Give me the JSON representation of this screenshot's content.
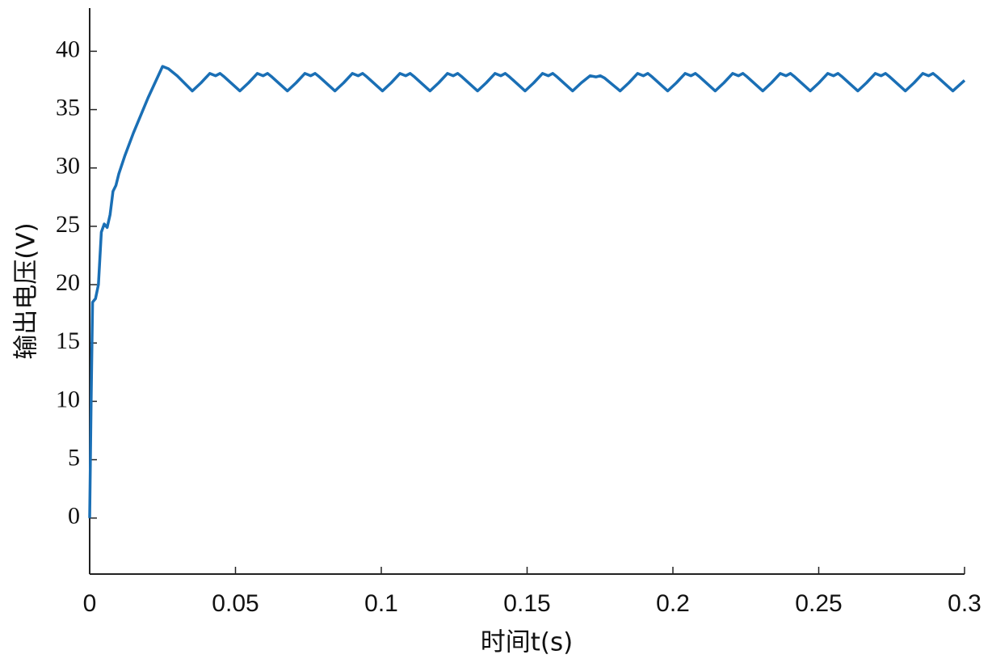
{
  "chart_data": {
    "type": "line",
    "xlabel": "时间t(s)",
    "ylabel": "输出电压(V)",
    "xlim": [
      0,
      0.3
    ],
    "ylim": [
      -4.8,
      43.7
    ],
    "xticks": [
      0,
      0.05,
      0.1,
      0.15,
      0.2,
      0.25,
      0.3
    ],
    "yticks": [
      0,
      5,
      10,
      15,
      20,
      25,
      30,
      35,
      40
    ],
    "grid": false,
    "series": [
      {
        "color": "#1a6fb5",
        "x": [
          0,
          0.0005,
          0.001,
          0.002,
          0.003,
          0.004,
          0.005,
          0.006,
          0.007,
          0.008,
          0.009,
          0.01,
          0.012,
          0.015,
          0.02,
          0.025,
          0.027,
          0.03,
          0.0352,
          0.0382,
          0.0412,
          0.0432,
          0.0447,
          0.0462,
          0.0515,
          0.0545,
          0.0575,
          0.0595,
          0.061,
          0.0625,
          0.0678,
          0.0708,
          0.0738,
          0.0758,
          0.0773,
          0.0788,
          0.0841,
          0.0871,
          0.0901,
          0.0921,
          0.0936,
          0.0951,
          0.1004,
          0.1034,
          0.1064,
          0.1084,
          0.1099,
          0.1114,
          0.1167,
          0.1197,
          0.1227,
          0.1247,
          0.1262,
          0.1277,
          0.133,
          0.136,
          0.139,
          0.141,
          0.1425,
          0.144,
          0.1493,
          0.1523,
          0.1553,
          0.1573,
          0.1588,
          0.1603,
          0.1656,
          0.1686,
          0.1716,
          0.1736,
          0.1751,
          0.1766,
          0.1819,
          0.1849,
          0.1879,
          0.1899,
          0.1914,
          0.1929,
          0.1982,
          0.2012,
          0.2042,
          0.2062,
          0.2077,
          0.2092,
          0.2145,
          0.2175,
          0.2205,
          0.2225,
          0.224,
          0.2255,
          0.2308,
          0.2338,
          0.2368,
          0.2388,
          0.2403,
          0.2418,
          0.2471,
          0.2501,
          0.2531,
          0.2551,
          0.2566,
          0.2581,
          0.2634,
          0.2664,
          0.2694,
          0.2714,
          0.2729,
          0.2744,
          0.2797,
          0.2827,
          0.2857,
          0.2877,
          0.2892,
          0.2907,
          0.296,
          0.3
        ],
        "values": [
          0,
          10,
          18.5,
          18.8,
          20,
          24.5,
          25.2,
          24.9,
          26,
          28,
          28.5,
          29.5,
          31,
          33,
          36,
          38.7,
          38.5,
          37.9,
          36.6,
          37.3,
          38.1,
          37.9,
          38.1,
          37.8,
          36.6,
          37.3,
          38.1,
          37.9,
          38.1,
          37.8,
          36.6,
          37.3,
          38.1,
          37.9,
          38.1,
          37.8,
          36.6,
          37.3,
          38.1,
          37.9,
          38.1,
          37.8,
          36.6,
          37.3,
          38.1,
          37.9,
          38.1,
          37.8,
          36.6,
          37.3,
          38.1,
          37.9,
          38.1,
          37.8,
          36.6,
          37.3,
          38.1,
          37.9,
          38.1,
          37.8,
          36.6,
          37.3,
          38.1,
          37.9,
          38.1,
          37.8,
          36.6,
          37.3,
          37.9,
          37.8,
          37.9,
          37.7,
          36.6,
          37.3,
          38.1,
          37.9,
          38.1,
          37.8,
          36.6,
          37.3,
          38.1,
          37.9,
          38.1,
          37.8,
          36.6,
          37.3,
          38.1,
          37.9,
          38.1,
          37.8,
          36.6,
          37.3,
          38.1,
          37.9,
          38.1,
          37.8,
          36.6,
          37.3,
          38.1,
          37.9,
          38.1,
          37.8,
          36.6,
          37.3,
          38.1,
          37.9,
          38.1,
          37.8,
          36.6,
          37.3,
          38.1,
          37.9,
          38.1,
          37.8,
          36.6,
          37.5
        ]
      }
    ]
  }
}
